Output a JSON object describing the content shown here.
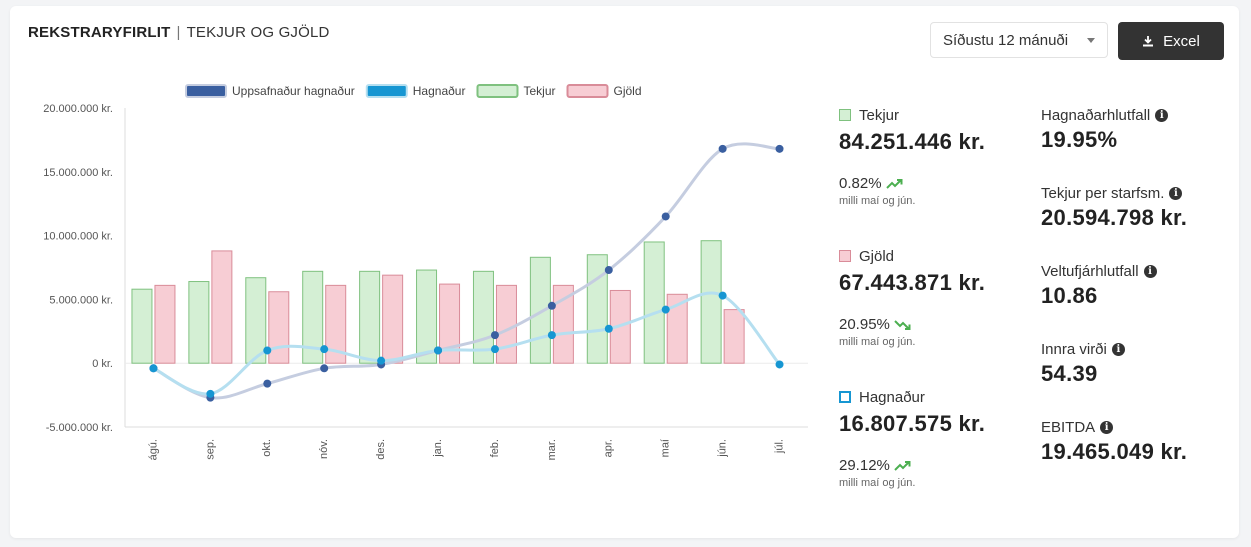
{
  "header": {
    "title_bold": "REKSTRARYFIRLIT",
    "separator": "|",
    "title_rest": "TEKJUR OG GJÖLD",
    "period_select": "Síðustu 12 mánuði",
    "excel_label": "Excel"
  },
  "chart_data": {
    "type": "bar",
    "categories": [
      "ágú.",
      "sep.",
      "okt.",
      "nóv.",
      "des.",
      "jan.",
      "feb.",
      "mar.",
      "apr.",
      "maí",
      "jún.",
      "júl."
    ],
    "ylim": [
      -5000000,
      20000000
    ],
    "yticks": [
      "20.000.000 kr.",
      "15.000.000 kr.",
      "10.000.000 kr.",
      "5.000.000 kr.",
      "0 kr.",
      "-5.000.000 kr."
    ],
    "ytick_values": [
      20000000,
      15000000,
      10000000,
      5000000,
      0,
      -5000000
    ],
    "legend": "top",
    "series": [
      {
        "name": "Uppsafnaður hagnaður",
        "type": "line",
        "color": "#3a5fa0",
        "values": [
          -400000,
          -2700000,
          -1600000,
          -400000,
          -100000,
          1000000,
          2200000,
          4500000,
          7300000,
          11500000,
          16800000,
          16800000
        ]
      },
      {
        "name": "Hagnaður",
        "type": "line",
        "color": "#1696d2",
        "values": [
          -400000,
          -2400000,
          1000000,
          1100000,
          200000,
          1000000,
          1100000,
          2200000,
          2700000,
          4200000,
          5300000,
          -100000
        ]
      },
      {
        "name": "Tekjur",
        "type": "bar",
        "color": "#d4efd4",
        "values": [
          5800000,
          6400000,
          6700000,
          7200000,
          7200000,
          7300000,
          7200000,
          8300000,
          8500000,
          9500000,
          9600000,
          0
        ]
      },
      {
        "name": "Gjöld",
        "type": "bar",
        "color": "#f7cdd4",
        "values": [
          6100000,
          8800000,
          5600000,
          6100000,
          6900000,
          6200000,
          6100000,
          6100000,
          5700000,
          5400000,
          4200000,
          0
        ]
      }
    ]
  },
  "summary": {
    "tekjur": {
      "label": "Tekjur",
      "value": "84.251.446 kr.",
      "pct": "0.82%",
      "note": "milli maí og jún."
    },
    "gjold": {
      "label": "Gjöld",
      "value": "67.443.871 kr.",
      "pct": "20.95%",
      "note": "milli maí og jún."
    },
    "hagnadur": {
      "label": "Hagnaður",
      "value": "16.807.575 kr.",
      "pct": "29.12%",
      "note": "milli maí og jún."
    }
  },
  "kpis": [
    {
      "label": "Hagnaðarhlutfall",
      "value": "19.95%"
    },
    {
      "label": "Tekjur per starfsm.",
      "value": "20.594.798 kr."
    },
    {
      "label": "Veltufjárhlutfall",
      "value": "10.86"
    },
    {
      "label": "Innra virði",
      "value": "54.39"
    },
    {
      "label": "EBITDA",
      "value": "19.465.049 kr."
    }
  ],
  "colors": {
    "up": "#4caf50",
    "down": "#4caf50",
    "button": "#333333"
  }
}
